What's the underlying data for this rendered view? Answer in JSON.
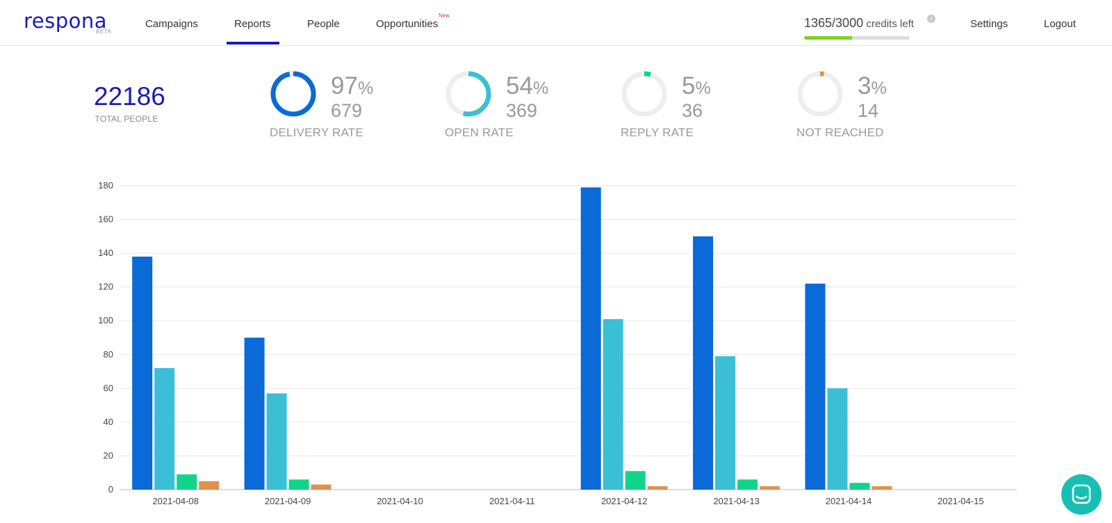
{
  "app": {
    "logo": "respona",
    "logo_badge": "BETA"
  },
  "nav": {
    "items": [
      {
        "label": "Campaigns"
      },
      {
        "label": "Reports"
      },
      {
        "label": "People"
      },
      {
        "label": "Opportunities"
      }
    ],
    "active": "Reports",
    "new_badge": "New"
  },
  "credits": {
    "used_total": "1365/3000",
    "label": "credits left",
    "fraction": 0.455
  },
  "header_links": {
    "settings": "Settings",
    "logout": "Logout"
  },
  "summary": {
    "total_people": "22186",
    "total_label": "TOTAL PEOPLE"
  },
  "stats": [
    {
      "pct": "97",
      "pct_sign": "%",
      "count": "679",
      "label": "DELIVERY RATE",
      "color": "#0a6ad8",
      "fraction": 0.97
    },
    {
      "pct": "54",
      "pct_sign": "%",
      "count": "369",
      "label": "OPEN RATE",
      "color": "#3bbfd6",
      "fraction": 0.54
    },
    {
      "pct": "5",
      "pct_sign": "%",
      "count": "36",
      "label": "REPLY RATE",
      "color": "#10d48a",
      "fraction": 0.05
    },
    {
      "pct": "3",
      "pct_sign": "%",
      "count": "14",
      "label": "NOT REACHED",
      "color": "#e0914e",
      "fraction": 0.03
    }
  ],
  "chart_data": {
    "type": "bar",
    "categories": [
      "2021-04-08",
      "2021-04-09",
      "2021-04-10",
      "2021-04-11",
      "2021-04-12",
      "2021-04-13",
      "2021-04-14",
      "2021-04-15"
    ],
    "series": [
      {
        "color": "#0a6ad8",
        "values": [
          138,
          90,
          0,
          0,
          179,
          150,
          122,
          0
        ]
      },
      {
        "color": "#3bbfd6",
        "values": [
          72,
          57,
          0,
          0,
          101,
          79,
          60,
          0
        ]
      },
      {
        "color": "#10d48a",
        "values": [
          9,
          6,
          0,
          0,
          11,
          6,
          4,
          0
        ]
      },
      {
        "color": "#e0914e",
        "values": [
          5,
          3,
          0,
          0,
          2,
          2,
          2,
          0
        ]
      }
    ],
    "ylim": [
      0,
      180
    ],
    "yticks": [
      0,
      20,
      40,
      60,
      80,
      100,
      120,
      140,
      160,
      180
    ],
    "grid": true
  },
  "icons": {
    "info": "info-icon",
    "chat": "chat-icon"
  }
}
